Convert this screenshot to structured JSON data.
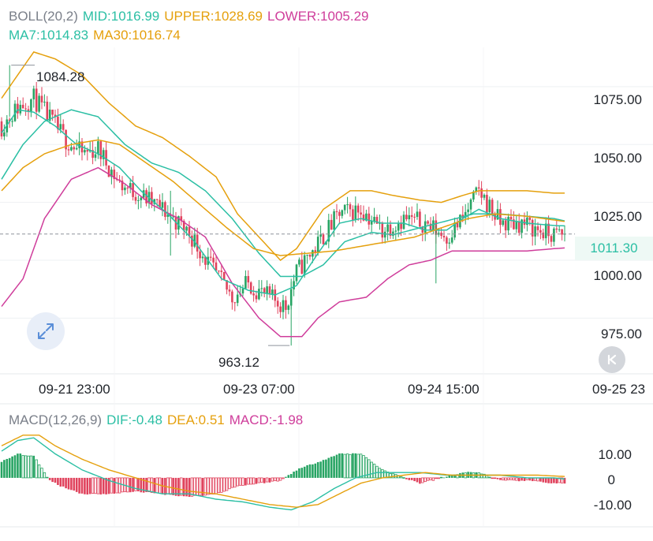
{
  "chart_data": [
    {
      "type": "candlestick",
      "title": "BOLL(20,2)",
      "indicators": {
        "boll_label": "BOLL(20,2)",
        "mid": "MID:1016.99",
        "upper": "UPPER:1028.69",
        "lower": "LOWER:1005.29",
        "ma7": "MA7:1014.83",
        "ma30": "MA30:1016.74"
      },
      "ylim": [
        955,
        1092
      ],
      "yticks": [
        "1075.00",
        "1050.00",
        "1025.00",
        "1000.00",
        "975.00"
      ],
      "xticks": [
        "09-21 23:00",
        "09-23 07:00",
        "09-24 15:00",
        "09-25 23"
      ],
      "last_price": "1011.30",
      "annotations": {
        "high": "1084.28",
        "low": "963.12"
      },
      "close_anchors": [
        [
          0,
          1058
        ],
        [
          6,
          1066
        ],
        [
          12,
          1070
        ],
        [
          18,
          1061
        ],
        [
          24,
          1052
        ],
        [
          30,
          1046
        ],
        [
          36,
          1048
        ],
        [
          44,
          1033
        ],
        [
          52,
          1028
        ],
        [
          60,
          1022
        ],
        [
          70,
          1012
        ],
        [
          78,
          997
        ],
        [
          86,
          984
        ],
        [
          92,
          990
        ],
        [
          98,
          985
        ],
        [
          106,
          980
        ],
        [
          110,
          995
        ],
        [
          118,
          1007
        ],
        [
          126,
          1020
        ],
        [
          134,
          1022
        ],
        [
          142,
          1013
        ],
        [
          150,
          1018
        ],
        [
          158,
          1016
        ],
        [
          166,
          1010
        ],
        [
          172,
          1018
        ],
        [
          178,
          1030
        ],
        [
          186,
          1016
        ],
        [
          194,
          1016
        ],
        [
          204,
          1011
        ],
        [
          210,
          1011
        ]
      ],
      "upper_anchors": [
        [
          0,
          1070
        ],
        [
          6,
          1080
        ],
        [
          12,
          1090
        ],
        [
          20,
          1087
        ],
        [
          30,
          1080
        ],
        [
          40,
          1068
        ],
        [
          50,
          1058
        ],
        [
          60,
          1053
        ],
        [
          70,
          1045
        ],
        [
          80,
          1036
        ],
        [
          88,
          1020
        ],
        [
          96,
          1010
        ],
        [
          104,
          1000
        ],
        [
          110,
          1005
        ],
        [
          120,
          1022
        ],
        [
          130,
          1030
        ],
        [
          138,
          1030
        ],
        [
          146,
          1028
        ],
        [
          156,
          1026
        ],
        [
          164,
          1025
        ],
        [
          172,
          1028
        ],
        [
          178,
          1030
        ],
        [
          186,
          1030
        ],
        [
          196,
          1030
        ],
        [
          206,
          1029
        ],
        [
          210,
          1029
        ]
      ],
      "mid_anchors": [
        [
          0,
          1035
        ],
        [
          8,
          1050
        ],
        [
          16,
          1060
        ],
        [
          26,
          1065
        ],
        [
          36,
          1062
        ],
        [
          46,
          1050
        ],
        [
          56,
          1042
        ],
        [
          66,
          1038
        ],
        [
          76,
          1030
        ],
        [
          86,
          1018
        ],
        [
          96,
          1003
        ],
        [
          104,
          993
        ],
        [
          112,
          993
        ],
        [
          120,
          998
        ],
        [
          128,
          1008
        ],
        [
          138,
          1012
        ],
        [
          146,
          1011
        ],
        [
          156,
          1014
        ],
        [
          166,
          1017
        ],
        [
          176,
          1020
        ],
        [
          186,
          1020
        ],
        [
          196,
          1019
        ],
        [
          206,
          1018
        ],
        [
          210,
          1016.99
        ]
      ],
      "lower_anchors": [
        [
          0,
          980
        ],
        [
          8,
          992
        ],
        [
          16,
          1018
        ],
        [
          26,
          1035
        ],
        [
          36,
          1040
        ],
        [
          46,
          1033
        ],
        [
          56,
          1024
        ],
        [
          66,
          1018
        ],
        [
          76,
          1010
        ],
        [
          86,
          990
        ],
        [
          96,
          975
        ],
        [
          104,
          967
        ],
        [
          112,
          967
        ],
        [
          118,
          975
        ],
        [
          126,
          982
        ],
        [
          136,
          984
        ],
        [
          144,
          992
        ],
        [
          152,
          998
        ],
        [
          160,
          1000
        ],
        [
          168,
          1004
        ],
        [
          176,
          1004
        ],
        [
          186,
          1004
        ],
        [
          196,
          1004
        ],
        [
          206,
          1005
        ],
        [
          210,
          1005.29
        ]
      ],
      "ma7_anchors": [
        [
          0,
          1055
        ],
        [
          6,
          1065
        ],
        [
          12,
          1064
        ],
        [
          20,
          1058
        ],
        [
          28,
          1050
        ],
        [
          36,
          1046
        ],
        [
          44,
          1040
        ],
        [
          52,
          1030
        ],
        [
          62,
          1020
        ],
        [
          72,
          1008
        ],
        [
          82,
          992
        ],
        [
          92,
          987
        ],
        [
          102,
          985
        ],
        [
          110,
          989
        ],
        [
          118,
          1003
        ],
        [
          126,
          1016
        ],
        [
          134,
          1018
        ],
        [
          142,
          1016
        ],
        [
          150,
          1016
        ],
        [
          158,
          1013
        ],
        [
          166,
          1013
        ],
        [
          172,
          1018
        ],
        [
          178,
          1022
        ],
        [
          186,
          1018
        ],
        [
          196,
          1016
        ],
        [
          206,
          1015
        ],
        [
          210,
          1014.83
        ]
      ],
      "ma30_anchors": [
        [
          0,
          1030
        ],
        [
          8,
          1040
        ],
        [
          16,
          1046
        ],
        [
          26,
          1050
        ],
        [
          36,
          1052
        ],
        [
          44,
          1050
        ],
        [
          54,
          1042
        ],
        [
          64,
          1034
        ],
        [
          74,
          1024
        ],
        [
          84,
          1014
        ],
        [
          94,
          1005
        ],
        [
          104,
          1002
        ],
        [
          114,
          1003
        ],
        [
          124,
          1004
        ],
        [
          134,
          1006
        ],
        [
          144,
          1008
        ],
        [
          154,
          1010
        ],
        [
          164,
          1014
        ],
        [
          174,
          1018
        ],
        [
          184,
          1020
        ],
        [
          196,
          1019
        ],
        [
          210,
          1016.74
        ]
      ]
    },
    {
      "type": "macd",
      "title": "MACD(12,26,9)",
      "indicators": {
        "label": "MACD(12,26,9)",
        "dif": "DIF:-0.48",
        "dea": "DEA:0.51",
        "macd": "MACD:-1.98"
      },
      "ylim": [
        -14.5,
        18
      ],
      "yticks": [
        "10.00",
        "0",
        "-10.00"
      ],
      "dif_anchors": [
        [
          0,
          10
        ],
        [
          6,
          14
        ],
        [
          12,
          15
        ],
        [
          20,
          9
        ],
        [
          30,
          3
        ],
        [
          40,
          -1
        ],
        [
          50,
          -4
        ],
        [
          60,
          -6
        ],
        [
          70,
          -6
        ],
        [
          80,
          -8
        ],
        [
          90,
          -9
        ],
        [
          100,
          -11
        ],
        [
          108,
          -12
        ],
        [
          116,
          -9
        ],
        [
          124,
          -4
        ],
        [
          132,
          0
        ],
        [
          140,
          2
        ],
        [
          148,
          2
        ],
        [
          156,
          2
        ],
        [
          166,
          1
        ],
        [
          176,
          1
        ],
        [
          186,
          1
        ],
        [
          196,
          0
        ],
        [
          206,
          0
        ],
        [
          210,
          -0.48
        ]
      ],
      "dea_anchors": [
        [
          0,
          12
        ],
        [
          8,
          16
        ],
        [
          14,
          16
        ],
        [
          20,
          12
        ],
        [
          30,
          7
        ],
        [
          40,
          3
        ],
        [
          50,
          0
        ],
        [
          60,
          -3
        ],
        [
          70,
          -5
        ],
        [
          80,
          -6
        ],
        [
          90,
          -8
        ],
        [
          100,
          -10
        ],
        [
          110,
          -11
        ],
        [
          118,
          -10
        ],
        [
          126,
          -6
        ],
        [
          134,
          -2
        ],
        [
          142,
          0
        ],
        [
          150,
          1
        ],
        [
          158,
          2
        ],
        [
          168,
          1
        ],
        [
          178,
          1
        ],
        [
          190,
          1
        ],
        [
          200,
          1
        ],
        [
          210,
          0.51
        ]
      ],
      "hist_anchors": [
        [
          0,
          6
        ],
        [
          6,
          9
        ],
        [
          12,
          8
        ],
        [
          18,
          -1
        ],
        [
          22,
          -3
        ],
        [
          30,
          -6
        ],
        [
          40,
          -6
        ],
        [
          50,
          -5
        ],
        [
          60,
          -6
        ],
        [
          70,
          -7
        ],
        [
          80,
          -6
        ],
        [
          88,
          -3
        ],
        [
          96,
          -2
        ],
        [
          104,
          -1
        ],
        [
          110,
          3
        ],
        [
          118,
          6
        ],
        [
          126,
          9
        ],
        [
          134,
          9
        ],
        [
          142,
          3
        ],
        [
          150,
          0
        ],
        [
          156,
          -2
        ],
        [
          164,
          0
        ],
        [
          172,
          2
        ],
        [
          178,
          2
        ],
        [
          186,
          -1
        ],
        [
          196,
          -1
        ],
        [
          206,
          -2
        ],
        [
          210,
          -1.98
        ]
      ]
    }
  ],
  "colors": {
    "up": "#27a463",
    "down": "#e0425c",
    "mid": "#2bbfa4",
    "upper": "#e5a00d",
    "lower": "#cf3d9b",
    "ma7": "#2bbfa4",
    "ma30": "#e5a00d",
    "grid": "#eef0f3"
  }
}
